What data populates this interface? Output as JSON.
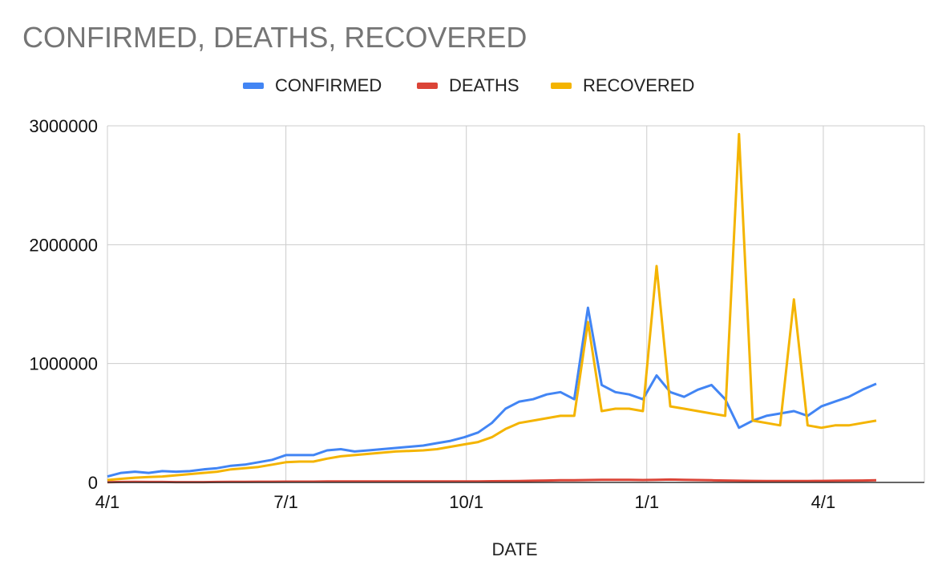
{
  "chart_data": {
    "type": "line",
    "title": "CONFIRMED, DEATHS, RECOVERED",
    "xlabel": "DATE",
    "ylabel": "",
    "ylim": [
      0,
      3000000
    ],
    "yticks": [
      "3000000",
      "2000000",
      "1000000",
      "0"
    ],
    "xticks": [
      "4/1",
      "7/1",
      "10/1",
      "1/1",
      "4/1"
    ],
    "x_range": [
      "2020-04-01",
      "2021-04-28"
    ],
    "grid": true,
    "legend_position": "top",
    "x": [
      "2020-04-01",
      "2020-04-08",
      "2020-04-15",
      "2020-04-22",
      "2020-04-29",
      "2020-05-06",
      "2020-05-13",
      "2020-05-20",
      "2020-05-27",
      "2020-06-03",
      "2020-06-10",
      "2020-06-17",
      "2020-06-24",
      "2020-07-01",
      "2020-07-08",
      "2020-07-15",
      "2020-07-22",
      "2020-07-29",
      "2020-08-05",
      "2020-08-12",
      "2020-08-19",
      "2020-08-26",
      "2020-09-02",
      "2020-09-09",
      "2020-09-16",
      "2020-09-23",
      "2020-09-30",
      "2020-10-07",
      "2020-10-14",
      "2020-10-21",
      "2020-10-28",
      "2020-11-04",
      "2020-11-11",
      "2020-11-18",
      "2020-11-25",
      "2020-12-02",
      "2020-12-09",
      "2020-12-16",
      "2020-12-23",
      "2020-12-30",
      "2021-01-06",
      "2021-01-13",
      "2021-01-20",
      "2021-01-27",
      "2021-02-03",
      "2021-02-10",
      "2021-02-17",
      "2021-02-24",
      "2021-03-03",
      "2021-03-10",
      "2021-03-17",
      "2021-03-24",
      "2021-03-31",
      "2021-04-07",
      "2021-04-14",
      "2021-04-21",
      "2021-04-28"
    ],
    "series": [
      {
        "name": "CONFIRMED",
        "color": "#4285F4",
        "values": [
          50000,
          80000,
          90000,
          80000,
          95000,
          90000,
          95000,
          110000,
          120000,
          140000,
          150000,
          170000,
          190000,
          230000,
          230000,
          230000,
          270000,
          280000,
          260000,
          270000,
          280000,
          290000,
          300000,
          310000,
          330000,
          350000,
          380000,
          420000,
          500000,
          620000,
          680000,
          700000,
          740000,
          760000,
          700000,
          1470000,
          820000,
          760000,
          740000,
          700000,
          900000,
          760000,
          720000,
          780000,
          820000,
          700000,
          460000,
          520000,
          560000,
          580000,
          600000,
          560000,
          640000,
          680000,
          720000,
          780000,
          830000
        ]
      },
      {
        "name": "DEATHS",
        "color": "#DB4437",
        "values": [
          2000,
          4000,
          5000,
          4000,
          4000,
          3000,
          3000,
          3000,
          4000,
          5000,
          5000,
          6000,
          6000,
          7000,
          7000,
          7000,
          8000,
          8000,
          8000,
          8000,
          8000,
          8000,
          8000,
          8000,
          8000,
          8000,
          9000,
          9000,
          10000,
          11000,
          12000,
          14000,
          16000,
          18000,
          18000,
          20000,
          22000,
          22000,
          22000,
          20000,
          22000,
          24000,
          22000,
          20000,
          18000,
          16000,
          14000,
          13000,
          12000,
          12000,
          12000,
          12000,
          13000,
          14000,
          15000,
          16000,
          18000
        ]
      },
      {
        "name": "RECOVERED",
        "color": "#F4B400",
        "values": [
          20000,
          30000,
          40000,
          45000,
          50000,
          60000,
          70000,
          80000,
          90000,
          110000,
          120000,
          130000,
          150000,
          170000,
          175000,
          175000,
          200000,
          220000,
          230000,
          240000,
          250000,
          260000,
          265000,
          270000,
          280000,
          300000,
          320000,
          340000,
          380000,
          450000,
          500000,
          520000,
          540000,
          560000,
          560000,
          1350000,
          600000,
          620000,
          620000,
          600000,
          1820000,
          640000,
          620000,
          600000,
          580000,
          560000,
          2930000,
          520000,
          500000,
          480000,
          1540000,
          480000,
          460000,
          480000,
          480000,
          500000,
          520000
        ]
      }
    ]
  }
}
